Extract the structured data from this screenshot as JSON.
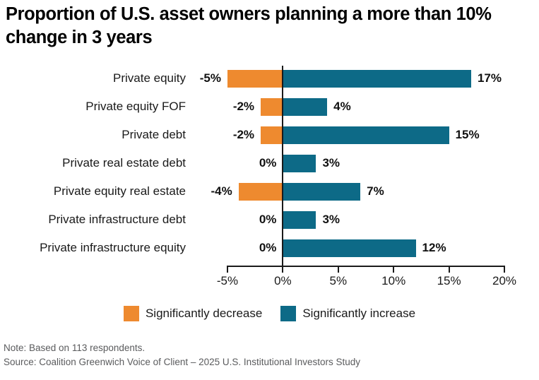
{
  "title": "Proportion of U.S. asset owners planning a more than 10% change in 3 years",
  "chart_data": {
    "type": "bar",
    "orientation": "horizontal-diverging",
    "title": "Proportion of U.S. asset owners planning a more than 10% change in 3 years",
    "categories": [
      "Private equity",
      "Private equity FOF",
      "Private debt",
      "Private real estate debt",
      "Private equity real estate",
      "Private infrastructure debt",
      "Private infrastructure equity"
    ],
    "series": [
      {
        "name": "Significantly decrease",
        "color": "#EE8A2F",
        "values": [
          -5,
          -2,
          -2,
          0,
          -4,
          0,
          0
        ]
      },
      {
        "name": "Significantly increase",
        "color": "#0D6A87",
        "values": [
          17,
          4,
          15,
          3,
          7,
          3,
          12
        ]
      }
    ],
    "value_labels_decrease": [
      "-5%",
      "-2%",
      "-2%",
      "0%",
      "-4%",
      "0%",
      "0%"
    ],
    "value_labels_increase": [
      "17%",
      "4%",
      "15%",
      "3%",
      "7%",
      "3%",
      "12%"
    ],
    "xlim": [
      -5,
      20
    ],
    "x_tick_values": [
      -5,
      0,
      5,
      10,
      15,
      20
    ],
    "x_ticks": [
      "-5%",
      "0%",
      "5%",
      "10%",
      "15%",
      "20%"
    ],
    "grid": false,
    "legend_position": "bottom",
    "axis_color": "#1a1a1a"
  },
  "footer": {
    "note": "Note: Based on 113 respondents.",
    "source": "Source: Coalition Greenwich Voice of Client – 2025 U.S. Institutional Investors Study"
  }
}
